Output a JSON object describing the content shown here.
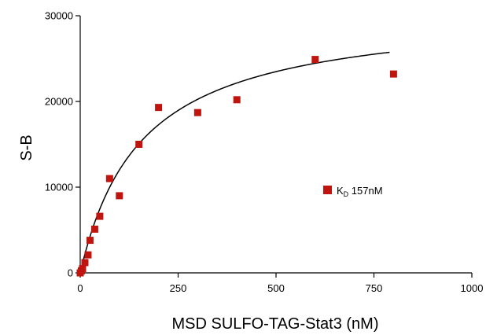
{
  "chart_data": {
    "type": "scatter",
    "title": "",
    "xlabel": "MSD SULFO-TAG-Stat3 (nM)",
    "ylabel": "S-B",
    "xlim": [
      0,
      1000
    ],
    "ylim": [
      0,
      30000
    ],
    "x_ticks": [
      "0",
      "250",
      "500",
      "750",
      "1000"
    ],
    "y_ticks": [
      "0",
      "10000",
      "20000",
      "30000"
    ],
    "grid": false,
    "series": [
      {
        "name": "K",
        "name_subscript": "D",
        "name_suffix": " 157nM",
        "color": "#c0140f",
        "marker": "square",
        "points": [
          {
            "x": 0,
            "y": 0
          },
          {
            "x": 3,
            "y": 250
          },
          {
            "x": 6,
            "y": 500
          },
          {
            "x": 12,
            "y": 1200
          },
          {
            "x": 20,
            "y": 2100
          },
          {
            "x": 25,
            "y": 3800
          },
          {
            "x": 37,
            "y": 5100
          },
          {
            "x": 50,
            "y": 6600
          },
          {
            "x": 75,
            "y": 11000
          },
          {
            "x": 100,
            "y": 9000
          },
          {
            "x": 150,
            "y": 15000
          },
          {
            "x": 200,
            "y": 19300
          },
          {
            "x": 300,
            "y": 18700
          },
          {
            "x": 400,
            "y": 20200
          },
          {
            "x": 600,
            "y": 24900
          },
          {
            "x": 800,
            "y": 23200
          }
        ]
      }
    ],
    "fit_curve": {
      "type": "one-site binding",
      "bmax": 30850,
      "kd": 157,
      "x_range": [
        0,
        790
      ],
      "color": "#000000"
    },
    "legend": "center-right"
  }
}
